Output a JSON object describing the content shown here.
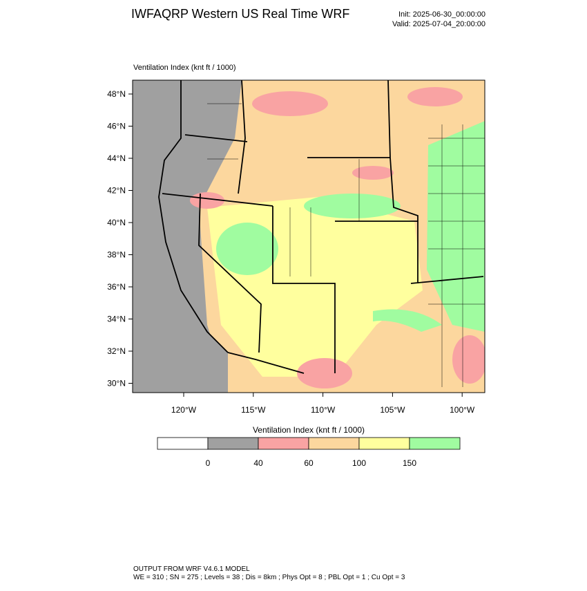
{
  "header": {
    "title": "IWFAQRP Western US Real Time WRF",
    "init": "Init: 2025-06-30_00:00:00",
    "valid": "Valid: 2025-07-04_20:00:00"
  },
  "map": {
    "subtitle": "Ventilation Index   (knt ft / 1000)",
    "lat_labels": [
      "48°N",
      "46°N",
      "44°N",
      "42°N",
      "40°N",
      "38°N",
      "36°N",
      "34°N",
      "32°N",
      "30°N"
    ],
    "lon_labels": [
      "120°W",
      "115°W",
      "110°W",
      "105°W",
      "100°W"
    ]
  },
  "colorbar": {
    "title": "Ventilation Index   (knt ft / 1000)",
    "levels": [
      0,
      40,
      60,
      100,
      150
    ],
    "colors": [
      "#ffffff",
      "#a0a0a0",
      "#f9a3a3",
      "#fcd79e",
      "#ffff9e",
      "#a0fca0"
    ]
  },
  "footer": {
    "line1": "OUTPUT FROM WRF V4.6.1 MODEL",
    "line2": "WE = 310 ; SN = 275 ; Levels = 38 ; Dis = 8km ; Phys Opt = 8 ; PBL Opt = 1 ; Cu Opt = 3"
  }
}
